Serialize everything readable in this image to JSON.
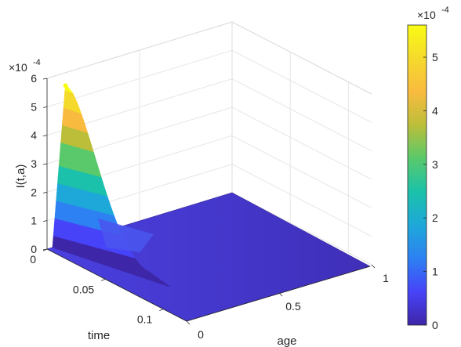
{
  "chart_data": {
    "type": "surface3d",
    "xlabel": "age",
    "ylabel": "time",
    "zlabel": "I(t,a)",
    "exponent_label": "×10",
    "exponent_power": "-4",
    "x_range": [
      0,
      1
    ],
    "y_range": [
      0,
      0.12
    ],
    "z_range": [
      0,
      6
    ],
    "x_ticks": [
      "0",
      "0.5",
      "1"
    ],
    "y_ticks": [
      "0",
      "0.05",
      "0.1"
    ],
    "z_ticks": [
      "0",
      "1",
      "2",
      "3",
      "4",
      "5",
      "6"
    ],
    "peak": {
      "time": 0,
      "age": 0.1,
      "value": 5.6
    },
    "grid": true,
    "colormap": "parula",
    "colorbar": {
      "min": 0,
      "max": 5.6,
      "ticks": [
        "0",
        "1",
        "2",
        "3",
        "4",
        "5"
      ],
      "colors": [
        "#3e26a8",
        "#4743f8",
        "#2d81f2",
        "#1ea8d9",
        "#1bc1aa",
        "#59c96b",
        "#bcbe3a",
        "#f9bb3f",
        "#f5da2c",
        "#f9fb15"
      ]
    }
  }
}
